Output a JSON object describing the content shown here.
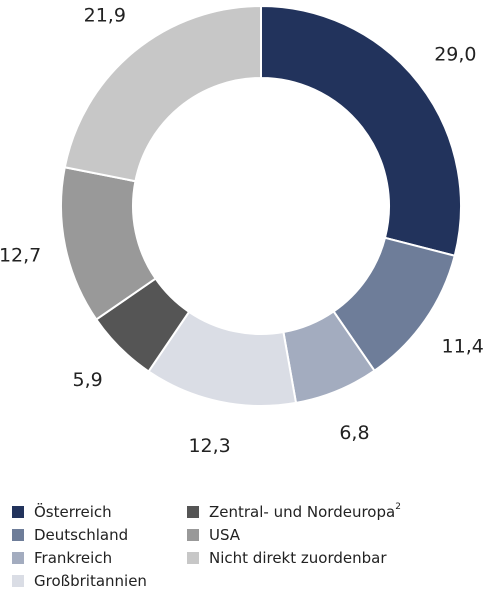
{
  "chart_data": {
    "type": "pie",
    "categories": [
      "Österreich",
      "Deutschland",
      "Frankreich",
      "Großbritannien",
      "Zentral- und Nordeuropa",
      "USA",
      "Nicht direkt zuordenbar"
    ],
    "legend_superscripts": [
      null,
      null,
      null,
      null,
      "2",
      null,
      null
    ],
    "values": [
      29.0,
      11.4,
      6.8,
      12.3,
      5.9,
      12.7,
      21.9
    ],
    "value_labels": [
      "29,0",
      "11,4",
      "6,8",
      "12,3",
      "5,9",
      "12,7",
      "21,9"
    ],
    "colors": [
      "#22335c",
      "#6e7d99",
      "#a3acbf",
      "#dadde5",
      "#555555",
      "#999999",
      "#c7c7c7"
    ],
    "legend": "bottom"
  }
}
